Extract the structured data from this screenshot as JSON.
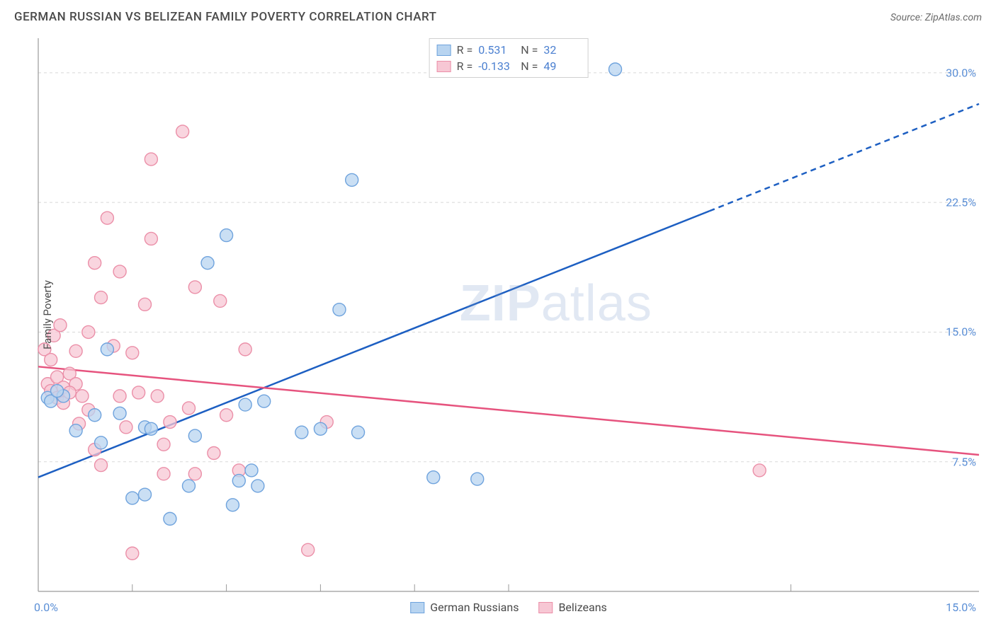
{
  "header": {
    "title": "GERMAN RUSSIAN VS BELIZEAN FAMILY POVERTY CORRELATION CHART",
    "source": "Source: ZipAtlas.com"
  },
  "chart": {
    "type": "scatter",
    "ylabel": "Family Poverty",
    "xlim": [
      0,
      15
    ],
    "ylim": [
      0,
      32
    ],
    "xtick_labels": {
      "left": "0.0%",
      "right": "15.0%"
    },
    "ytick_labels": [
      "7.5%",
      "15.0%",
      "22.5%",
      "30.0%"
    ],
    "ytick_values": [
      7.5,
      15.0,
      22.5,
      30.0
    ],
    "xtick_minor": [
      1.5,
      3,
      4.5,
      6,
      7.5,
      12
    ],
    "grid_color": "#d8d8d8",
    "grid_dash": "4,4",
    "axis_color": "#9a9a9a",
    "background_color": "#ffffff",
    "watermark": "ZIPatlas",
    "series": [
      {
        "name": "German Russians",
        "fill": "#b8d4f0",
        "stroke": "#6fa3dd",
        "marker_r": 9,
        "marker_opacity": 0.75,
        "points": [
          [
            0.15,
            11.2
          ],
          [
            0.2,
            11.0
          ],
          [
            0.6,
            9.3
          ],
          [
            0.9,
            10.2
          ],
          [
            1.0,
            8.6
          ],
          [
            1.1,
            14.0
          ],
          [
            1.3,
            10.3
          ],
          [
            1.5,
            5.4
          ],
          [
            1.7,
            5.6
          ],
          [
            1.7,
            9.5
          ],
          [
            1.8,
            9.4
          ],
          [
            2.1,
            4.2
          ],
          [
            2.4,
            6.1
          ],
          [
            2.5,
            9.0
          ],
          [
            2.7,
            19.0
          ],
          [
            3.0,
            20.6
          ],
          [
            3.1,
            5.0
          ],
          [
            3.2,
            6.4
          ],
          [
            3.3,
            10.8
          ],
          [
            3.4,
            7.0
          ],
          [
            3.5,
            6.1
          ],
          [
            3.6,
            11.0
          ],
          [
            4.2,
            9.2
          ],
          [
            4.5,
            9.4
          ],
          [
            4.8,
            16.3
          ],
          [
            5.0,
            23.8
          ],
          [
            5.1,
            9.2
          ],
          [
            6.3,
            6.6
          ],
          [
            7.0,
            6.5
          ],
          [
            9.2,
            30.2
          ],
          [
            0.4,
            11.3
          ],
          [
            0.3,
            11.6
          ]
        ],
        "trend": {
          "x1": 0,
          "y1": 6.6,
          "x2": 10.7,
          "y2": 22.0,
          "dash_x2": 15,
          "dash_y2": 28.2,
          "color": "#1d5fc2",
          "width": 2.5
        }
      },
      {
        "name": "Belizeans",
        "fill": "#f7c7d4",
        "stroke": "#eb8fa8",
        "marker_r": 9,
        "marker_opacity": 0.75,
        "points": [
          [
            0.1,
            14.0
          ],
          [
            0.15,
            12.0
          ],
          [
            0.2,
            11.6
          ],
          [
            0.2,
            13.4
          ],
          [
            0.25,
            14.8
          ],
          [
            0.3,
            11.2
          ],
          [
            0.3,
            12.4
          ],
          [
            0.35,
            15.4
          ],
          [
            0.4,
            10.9
          ],
          [
            0.4,
            11.8
          ],
          [
            0.5,
            12.6
          ],
          [
            0.6,
            12.0
          ],
          [
            0.6,
            13.9
          ],
          [
            0.65,
            9.7
          ],
          [
            0.7,
            11.3
          ],
          [
            0.8,
            15.0
          ],
          [
            0.8,
            10.5
          ],
          [
            0.9,
            19.0
          ],
          [
            0.9,
            8.2
          ],
          [
            1.0,
            17.0
          ],
          [
            1.0,
            7.3
          ],
          [
            1.1,
            21.6
          ],
          [
            1.2,
            14.2
          ],
          [
            1.3,
            18.5
          ],
          [
            1.3,
            11.3
          ],
          [
            1.4,
            9.5
          ],
          [
            1.5,
            2.2
          ],
          [
            1.5,
            13.8
          ],
          [
            1.6,
            11.5
          ],
          [
            1.7,
            16.6
          ],
          [
            1.8,
            20.4
          ],
          [
            1.8,
            25.0
          ],
          [
            1.9,
            11.3
          ],
          [
            2.0,
            8.5
          ],
          [
            2.0,
            6.8
          ],
          [
            2.1,
            9.8
          ],
          [
            2.3,
            26.6
          ],
          [
            2.4,
            10.6
          ],
          [
            2.5,
            17.6
          ],
          [
            2.5,
            6.8
          ],
          [
            2.8,
            8.0
          ],
          [
            2.9,
            16.8
          ],
          [
            3.0,
            10.2
          ],
          [
            3.2,
            7.0
          ],
          [
            3.3,
            14.0
          ],
          [
            4.3,
            2.4
          ],
          [
            4.6,
            9.8
          ],
          [
            11.5,
            7.0
          ],
          [
            0.5,
            11.5
          ]
        ],
        "trend": {
          "x1": 0,
          "y1": 13.0,
          "x2": 15,
          "y2": 7.9,
          "color": "#e6537e",
          "width": 2.5
        }
      }
    ],
    "stats": [
      {
        "swatch_fill": "#b8d4f0",
        "swatch_stroke": "#6fa3dd",
        "r": "0.531",
        "n": "32"
      },
      {
        "swatch_fill": "#f7c7d4",
        "swatch_stroke": "#eb8fa8",
        "r": "-0.133",
        "n": "49"
      }
    ],
    "legend": [
      {
        "swatch_fill": "#b8d4f0",
        "swatch_stroke": "#6fa3dd",
        "label": "German Russians"
      },
      {
        "swatch_fill": "#f7c7d4",
        "swatch_stroke": "#eb8fa8",
        "label": "Belizeans"
      }
    ]
  }
}
